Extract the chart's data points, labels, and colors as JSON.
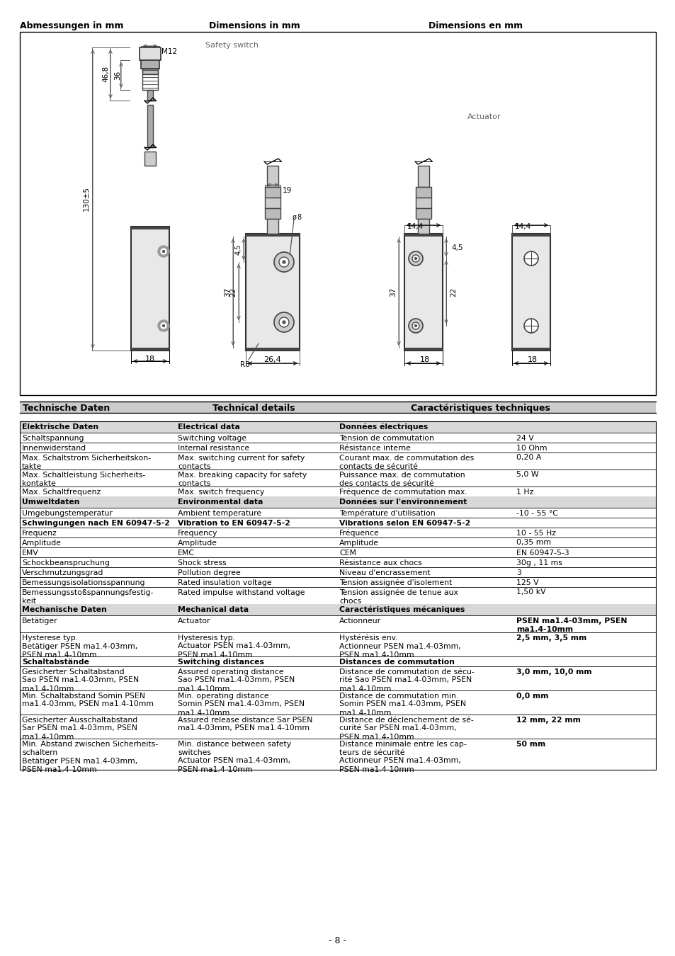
{
  "title_de": "Abmessungen in mm",
  "title_en": "Dimensions in mm",
  "title_fr": "Dimensions en mm",
  "section_header_de": "Technische Daten",
  "section_header_en": "Technical details",
  "section_header_fr": "Caractéristiques techniques",
  "footer": "- 8 -",
  "table_rows": [
    {
      "de": "Elektrische Daten",
      "en": "Electrical data",
      "fr": "Données électriques",
      "val": "",
      "bold": true,
      "section_header": true
    },
    {
      "de": "Schaltspannung",
      "en": "Switching voltage",
      "fr": "Tension de commutation",
      "val": "24 V",
      "bold": false,
      "section_header": false
    },
    {
      "de": "Innenwiderstand",
      "en": "Internal resistance",
      "fr": "Résistance interne",
      "val": "10 Ohm",
      "bold": false,
      "section_header": false
    },
    {
      "de": "Max. Schaltstrom Sicherheitskon-\ntakte",
      "en": "Max. switching current for safety\ncontacts",
      "fr": "Courant max. de commutation des\ncontacts de sécurité",
      "val": "0,20 A",
      "bold": false,
      "section_header": false
    },
    {
      "de": "Max. Schaltleistung Sicherheits-\nkontakte",
      "en": "Max. breaking capacity for safety\ncontacts",
      "fr": "Puissance max. de commutation\ndes contacts de sécurité",
      "val": "5,0 W",
      "bold": false,
      "section_header": false
    },
    {
      "de": "Max. Schaltfrequenz",
      "en": "Max. switch frequency",
      "fr": "Fréquence de commutation max.",
      "val": "1 Hz",
      "bold": false,
      "section_header": false
    },
    {
      "de": "Umweltdaten",
      "en": "Environmental data",
      "fr": "Données sur l'environnement",
      "val": "",
      "bold": true,
      "section_header": true
    },
    {
      "de": "Umgebungstemperatur",
      "en": "Ambient temperature",
      "fr": "Température d'utilisation",
      "val": "-10 - 55 °C",
      "bold": false,
      "section_header": false
    },
    {
      "de": "Schwingungen nach EN 60947-5-2",
      "en": "Vibration to EN 60947-5-2",
      "fr": "Vibrations selon EN 60947-5-2",
      "val": "",
      "bold": true,
      "section_header": false,
      "subheader": true
    },
    {
      "de": "Frequenz",
      "en": "Frequency",
      "fr": "Fréquence",
      "val": "10 - 55 Hz",
      "bold": false,
      "section_header": false
    },
    {
      "de": "Amplitude",
      "en": "Amplitude",
      "fr": "Amplitude",
      "val": "0,35 mm",
      "bold": false,
      "section_header": false
    },
    {
      "de": "EMV",
      "en": "EMC",
      "fr": "CEM",
      "val": "EN 60947-5-3",
      "bold": false,
      "section_header": false
    },
    {
      "de": "Schockbeanspruchung",
      "en": "Shock stress",
      "fr": "Résistance aux chocs",
      "val": "30g , 11 ms",
      "bold": false,
      "section_header": false
    },
    {
      "de": "Verschmutzungsgrad",
      "en": "Pollution degree",
      "fr": "Niveau d'encrassement",
      "val": "3",
      "bold": false,
      "section_header": false
    },
    {
      "de": "Bemessungsisolationsspannung",
      "en": "Rated insulation voltage",
      "fr": "Tension assignée d'isolement",
      "val": "125 V",
      "bold": false,
      "section_header": false
    },
    {
      "de": "Bemessungsstoßspannungsfestig-\nkeit",
      "en": "Rated impulse withstand voltage",
      "fr": "Tension assignée de tenue aux\nchocs",
      "val": "1,50 kV",
      "bold": false,
      "section_header": false
    },
    {
      "de": "Mechanische Daten",
      "en": "Mechanical data",
      "fr": "Caractéristiques mécaniques",
      "val": "",
      "bold": true,
      "section_header": true
    },
    {
      "de": "Betätiger",
      "en": "Actuator",
      "fr": "Actionneur",
      "val": "PSEN ma1.4-03mm, PSEN\nma1.4-10mm",
      "bold": false,
      "section_header": false,
      "val_bold": true
    },
    {
      "de": "Hysterese typ.\nBetätiger PSEN ma1.4-03mm,\nPSEN ma1.4-10mm",
      "en": "Hysteresis typ.\nActuator PSEN ma1.4-03mm,\nPSEN ma1.4-10mm",
      "fr": "Hystérésis env.\nActionneur PSEN ma1.4-03mm,\nPSEN ma1.4-10mm",
      "val": "2,5 mm, 3,5 mm",
      "bold": false,
      "section_header": false,
      "val_bold": true
    },
    {
      "de": "Schaltabstände",
      "en": "Switching distances",
      "fr": "Distances de commutation",
      "val": "",
      "bold": true,
      "section_header": false,
      "subheader": true
    },
    {
      "de": "Gesicherter Schaltabstand\nSao PSEN ma1.4-03mm, PSEN\nma1.4-10mm",
      "en": "Assured operating distance\nSao PSEN ma1.4-03mm, PSEN\nma1.4-10mm",
      "fr": "Distance de commutation de sécu-\nrité Sao PSEN ma1.4-03mm, PSEN\nma1.4-10mm",
      "val": "3,0 mm, 10,0 mm",
      "bold": false,
      "section_header": false,
      "val_bold": true
    },
    {
      "de": "Min. Schaltabstand Somin PSEN\nma1.4-03mm, PSEN ma1.4-10mm",
      "en": "Min. operating distance\nSomin PSEN ma1.4-03mm, PSEN\nma1.4-10mm",
      "fr": "Distance de commutation min.\nSomin PSEN ma1.4-03mm, PSEN\nma1.4-10mm",
      "val": "0,0 mm",
      "bold": false,
      "section_header": false,
      "val_bold": true
    },
    {
      "de": "Gesicherter Ausschaltabstand\nSar PSEN ma1.4-03mm, PSEN\nma1.4-10mm",
      "en": "Assured release distance Sar PSEN\nma1.4-03mm, PSEN ma1.4-10mm",
      "fr": "Distance de déclenchement de sé-\ncurité Sar PSEN ma1.4-03mm,\nPSEN ma1.4-10mm",
      "val": "12 mm, 22 mm",
      "bold": false,
      "section_header": false,
      "val_bold": true
    },
    {
      "de": "Min. Abstand zwischen Sicherheits-\nschaltern\nBetätiger PSEN ma1.4-03mm,\nPSEN ma1.4-10mm",
      "en": "Min. distance between safety\nswitches\nActuator PSEN ma1.4-03mm,\nPSEN ma1.4-10mm",
      "fr": "Distance minimale entre les cap-\nteurs de sécurité\nActionneur PSEN ma1.4-03mm,\nPSEN ma1.4-10mm",
      "val": "50 mm",
      "bold": false,
      "section_header": false,
      "val_bold": true
    }
  ]
}
